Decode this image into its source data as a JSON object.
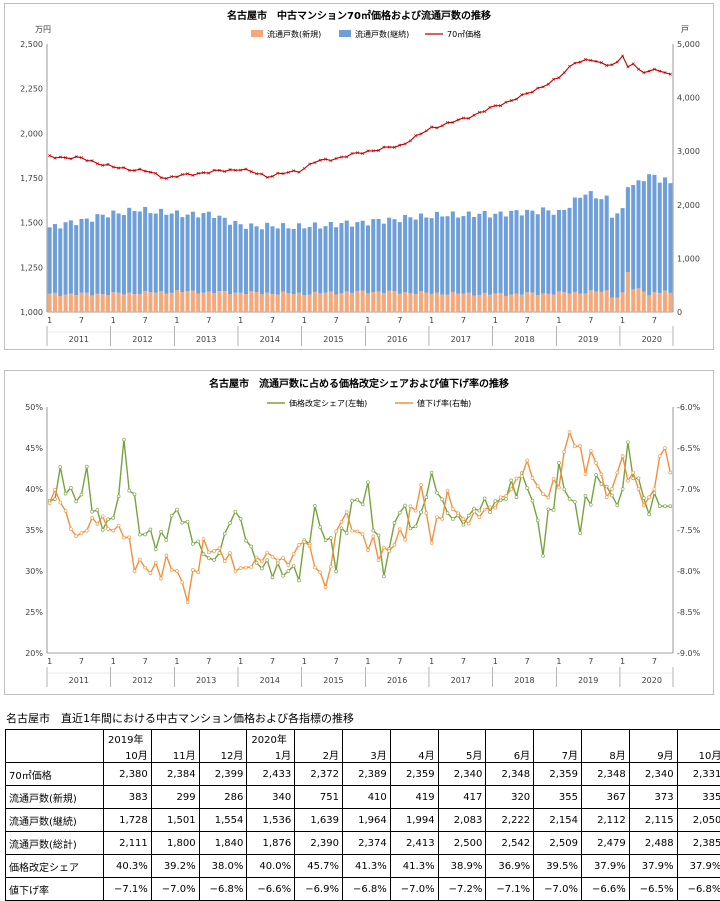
{
  "chart1": {
    "title": "名古屋市　中古マンション70㎡価格および流通戸数の推移",
    "y_left_unit": "万円",
    "y_right_unit": "戸",
    "legend": [
      "流通戸数(新規)",
      "流通戸数(継続)",
      "70㎡価格"
    ],
    "left_ticks": [
      "1,000",
      "1,250",
      "1,500",
      "1,750",
      "2,000",
      "2,250",
      "2,500"
    ],
    "right_ticks": [
      "0",
      "1,000",
      "2,000",
      "3,000",
      "4,000",
      "5,000"
    ],
    "years": [
      "2011",
      "2012",
      "2013",
      "2014",
      "2015",
      "2016",
      "2017",
      "2018",
      "2019",
      "2020"
    ],
    "month_ticks": [
      "1",
      "7"
    ]
  },
  "chart2": {
    "title": "名古屋市　流通戸数に占める価格改定シェアおよび値下げ率の推移",
    "legend": [
      "価格改定シェア(左軸)",
      "値下げ率(右軸)"
    ],
    "left_ticks": [
      "20%",
      "25%",
      "30%",
      "35%",
      "40%",
      "45%",
      "50%"
    ],
    "right_ticks": [
      "-9.0%",
      "-8.5%",
      "-8.0%",
      "-7.5%",
      "-7.0%",
      "-6.5%",
      "-6.0%"
    ],
    "years": [
      "2011",
      "2012",
      "2013",
      "2014",
      "2015",
      "2016",
      "2017",
      "2018",
      "2019",
      "2020"
    ],
    "month_ticks": [
      "1",
      "7"
    ]
  },
  "chart_data": [
    {
      "type": "bar",
      "title": "名古屋市　中古マンション70㎡価格および流通戸数の推移",
      "stacked": true,
      "x_range": [
        "2011-01",
        "2020-10"
      ],
      "ylim_left": [
        1000,
        2500
      ],
      "ylim_right": [
        0,
        5000
      ],
      "series": [
        {
          "name": "流通戸数(新規)",
          "axis": "right",
          "color": "#f4a97c",
          "anchor_points": [
            [
              "2011-01",
              330
            ],
            [
              "2012-01",
              340
            ],
            [
              "2013-01",
              380
            ],
            [
              "2014-01",
              360
            ],
            [
              "2015-01",
              340
            ],
            [
              "2016-01",
              380
            ],
            [
              "2017-01",
              350
            ],
            [
              "2018-01",
              330
            ],
            [
              "2019-01",
              350
            ],
            [
              "2019-10",
              383
            ],
            [
              "2019-11",
              299
            ],
            [
              "2019-12",
              286
            ],
            [
              "2020-01",
              340
            ],
            [
              "2020-02",
              751
            ],
            [
              "2020-03",
              410
            ],
            [
              "2020-04",
              419
            ],
            [
              "2020-05",
              417
            ],
            [
              "2020-06",
              320
            ],
            [
              "2020-07",
              355
            ],
            [
              "2020-08",
              367
            ],
            [
              "2020-09",
              373
            ],
            [
              "2020-10",
              335
            ]
          ]
        },
        {
          "name": "流通戸数(継続)",
          "axis": "right",
          "color": "#6f9fd8",
          "anchor_points": [
            [
              "2011-01",
              1250
            ],
            [
              "2011-06",
              1350
            ],
            [
              "2012-01",
              1500
            ],
            [
              "2012-06",
              1550
            ],
            [
              "2013-01",
              1450
            ],
            [
              "2013-08",
              1450
            ],
            [
              "2014-01",
              1250
            ],
            [
              "2015-01",
              1250
            ],
            [
              "2016-01",
              1300
            ],
            [
              "2017-01",
              1450
            ],
            [
              "2018-01",
              1500
            ],
            [
              "2018-10",
              1550
            ],
            [
              "2019-01",
              1500
            ],
            [
              "2019-06",
              1850
            ],
            [
              "2019-10",
              1728
            ],
            [
              "2019-11",
              1501
            ],
            [
              "2019-12",
              1554
            ],
            [
              "2020-01",
              1536
            ],
            [
              "2020-02",
              1639
            ],
            [
              "2020-03",
              1964
            ],
            [
              "2020-04",
              1994
            ],
            [
              "2020-05",
              2083
            ],
            [
              "2020-06",
              2222
            ],
            [
              "2020-07",
              2154
            ],
            [
              "2020-08",
              2112
            ],
            [
              "2020-09",
              2115
            ],
            [
              "2020-10",
              2050
            ]
          ]
        },
        {
          "name": "70㎡価格",
          "axis": "left",
          "type": "line",
          "color": "#c00000",
          "anchor_points": [
            [
              "2011-01",
              1870
            ],
            [
              "2011-07",
              1860
            ],
            [
              "2012-01",
              1810
            ],
            [
              "2012-07",
              1790
            ],
            [
              "2012-11",
              1750
            ],
            [
              "2013-01",
              1760
            ],
            [
              "2013-06",
              1780
            ],
            [
              "2014-01",
              1800
            ],
            [
              "2014-06",
              1760
            ],
            [
              "2014-12",
              1790
            ],
            [
              "2015-03",
              1840
            ],
            [
              "2015-07",
              1860
            ],
            [
              "2016-01",
              1900
            ],
            [
              "2016-07",
              1930
            ],
            [
              "2017-01",
              2030
            ],
            [
              "2017-07",
              2080
            ],
            [
              "2018-01",
              2150
            ],
            [
              "2018-07",
              2220
            ],
            [
              "2019-01",
              2310
            ],
            [
              "2019-04",
              2400
            ],
            [
              "2019-07",
              2410
            ],
            [
              "2019-10",
              2380
            ],
            [
              "2019-11",
              2384
            ],
            [
              "2019-12",
              2399
            ],
            [
              "2020-01",
              2433
            ],
            [
              "2020-02",
              2372
            ],
            [
              "2020-03",
              2389
            ],
            [
              "2020-04",
              2359
            ],
            [
              "2020-05",
              2340
            ],
            [
              "2020-06",
              2348
            ],
            [
              "2020-07",
              2359
            ],
            [
              "2020-08",
              2348
            ],
            [
              "2020-09",
              2340
            ],
            [
              "2020-10",
              2331
            ]
          ]
        }
      ]
    },
    {
      "type": "line",
      "title": "名古屋市　流通戸数に占める価格改定シェアおよび値下げ率の推移",
      "x_range": [
        "2011-01",
        "2020-10"
      ],
      "ylim_left": [
        20,
        50
      ],
      "ylim_right": [
        -9.0,
        -6.0
      ],
      "series": [
        {
          "name": "価格改定シェア(左軸)",
          "axis": "left",
          "unit": "%",
          "color": "#77a33e",
          "anchor_points": [
            [
              "2011-01",
              38
            ],
            [
              "2011-03",
              41.5
            ],
            [
              "2011-06",
              38.5
            ],
            [
              "2011-08",
              41.5
            ],
            [
              "2011-10",
              36
            ],
            [
              "2012-01",
              36
            ],
            [
              "2012-03",
              44.5
            ],
            [
              "2012-06",
              35
            ],
            [
              "2012-10",
              33.5
            ],
            [
              "2013-01",
              37.5
            ],
            [
              "2013-05",
              33
            ],
            [
              "2013-08",
              31
            ],
            [
              "2013-12",
              37.5
            ],
            [
              "2014-04",
              31
            ],
            [
              "2014-08",
              30
            ],
            [
              "2014-12",
              30
            ],
            [
              "2015-03",
              37
            ],
            [
              "2015-07",
              31.5
            ],
            [
              "2015-10",
              38
            ],
            [
              "2016-01",
              39.5
            ],
            [
              "2016-04",
              30
            ],
            [
              "2016-07",
              38
            ],
            [
              "2016-10",
              35
            ],
            [
              "2017-01",
              41.5
            ],
            [
              "2017-04",
              37
            ],
            [
              "2017-07",
              36
            ],
            [
              "2017-10",
              38
            ],
            [
              "2018-01",
              38
            ],
            [
              "2018-04",
              40
            ],
            [
              "2018-07",
              41
            ],
            [
              "2018-10",
              33
            ],
            [
              "2019-01",
              42
            ],
            [
              "2019-05",
              36
            ],
            [
              "2019-08",
              41
            ],
            [
              "2019-10",
              40.3
            ],
            [
              "2019-11",
              39.2
            ],
            [
              "2019-12",
              38.0
            ],
            [
              "2020-01",
              40.0
            ],
            [
              "2020-02",
              45.7
            ],
            [
              "2020-03",
              41.3
            ],
            [
              "2020-04",
              41.3
            ],
            [
              "2020-05",
              38.9
            ],
            [
              "2020-06",
              36.9
            ],
            [
              "2020-07",
              39.5
            ],
            [
              "2020-08",
              37.9
            ],
            [
              "2020-09",
              37.9
            ],
            [
              "2020-10",
              37.9
            ]
          ]
        },
        {
          "name": "値下げ率(右軸)",
          "axis": "right",
          "unit": "%",
          "color": "#f2913d",
          "anchor_points": [
            [
              "2011-01",
              -7.2
            ],
            [
              "2011-02",
              -7.0
            ],
            [
              "2011-06",
              -7.6
            ],
            [
              "2011-10",
              -7.35
            ],
            [
              "2012-01",
              -7.5
            ],
            [
              "2012-03",
              -7.5
            ],
            [
              "2012-05",
              -7.9
            ],
            [
              "2012-09",
              -8.0
            ],
            [
              "2012-12",
              -7.9
            ],
            [
              "2013-03",
              -8.3
            ],
            [
              "2013-06",
              -7.7
            ],
            [
              "2013-10",
              -7.8
            ],
            [
              "2014-01",
              -8.0
            ],
            [
              "2014-06",
              -7.8
            ],
            [
              "2014-10",
              -7.9
            ],
            [
              "2015-01",
              -7.6
            ],
            [
              "2015-05",
              -8.2
            ],
            [
              "2015-08",
              -7.3
            ],
            [
              "2015-12",
              -7.6
            ],
            [
              "2016-04",
              -7.8
            ],
            [
              "2016-08",
              -7.5
            ],
            [
              "2016-11",
              -7.0
            ],
            [
              "2017-01",
              -7.6
            ],
            [
              "2017-04",
              -7.1
            ],
            [
              "2017-07",
              -7.4
            ],
            [
              "2017-10",
              -7.3
            ],
            [
              "2018-01",
              -7.2
            ],
            [
              "2018-04",
              -7.0
            ],
            [
              "2018-07",
              -6.7
            ],
            [
              "2018-10",
              -7.1
            ],
            [
              "2019-01",
              -6.9
            ],
            [
              "2019-03",
              -6.3
            ],
            [
              "2019-06",
              -6.7
            ],
            [
              "2019-08",
              -6.6
            ],
            [
              "2019-10",
              -7.1
            ],
            [
              "2019-11",
              -7.0
            ],
            [
              "2019-12",
              -6.8
            ],
            [
              "2020-01",
              -6.6
            ],
            [
              "2020-02",
              -6.9
            ],
            [
              "2020-03",
              -6.8
            ],
            [
              "2020-04",
              -7.0
            ],
            [
              "2020-05",
              -7.2
            ],
            [
              "2020-06",
              -7.1
            ],
            [
              "2020-07",
              -7.0
            ],
            [
              "2020-08",
              -6.6
            ],
            [
              "2020-09",
              -6.5
            ],
            [
              "2020-10",
              -6.8
            ]
          ]
        }
      ]
    },
    {
      "type": "table",
      "title": "名古屋市　直近1年間における中古マンション価格および各指標の推移",
      "year_labels": [
        "2019年",
        "",
        "",
        "2020年",
        "",
        "",
        "",
        "",
        "",
        "",
        "",
        "",
        ""
      ],
      "columns": [
        "10月",
        "11月",
        "12月",
        "1月",
        "2月",
        "3月",
        "4月",
        "5月",
        "6月",
        "7月",
        "8月",
        "9月",
        "10月"
      ],
      "rows": [
        {
          "label": "70㎡価格",
          "values": [
            "2,380",
            "2,384",
            "2,399",
            "2,433",
            "2,372",
            "2,389",
            "2,359",
            "2,340",
            "2,348",
            "2,359",
            "2,348",
            "2,340",
            "2,331"
          ]
        },
        {
          "label": "流通戸数(新規)",
          "values": [
            "383",
            "299",
            "286",
            "340",
            "751",
            "410",
            "419",
            "417",
            "320",
            "355",
            "367",
            "373",
            "335"
          ]
        },
        {
          "label": "流通戸数(継続)",
          "values": [
            "1,728",
            "1,501",
            "1,554",
            "1,536",
            "1,639",
            "1,964",
            "1,994",
            "2,083",
            "2,222",
            "2,154",
            "2,112",
            "2,115",
            "2,050"
          ]
        },
        {
          "label": "流通戸数(総計)",
          "values": [
            "2,111",
            "1,800",
            "1,840",
            "1,876",
            "2,390",
            "2,374",
            "2,413",
            "2,500",
            "2,542",
            "2,509",
            "2,479",
            "2,488",
            "2,385"
          ]
        },
        {
          "label": "価格改定シェア",
          "values": [
            "40.3%",
            "39.2%",
            "38.0%",
            "40.0%",
            "45.7%",
            "41.3%",
            "41.3%",
            "38.9%",
            "36.9%",
            "39.5%",
            "37.9%",
            "37.9%",
            "37.9%"
          ]
        },
        {
          "label": "値下げ率",
          "values": [
            "−7.1%",
            "−7.0%",
            "−6.8%",
            "−6.6%",
            "−6.9%",
            "−6.8%",
            "−7.0%",
            "−7.2%",
            "−7.1%",
            "−7.0%",
            "−6.6%",
            "−6.5%",
            "−6.8%"
          ]
        }
      ]
    }
  ]
}
